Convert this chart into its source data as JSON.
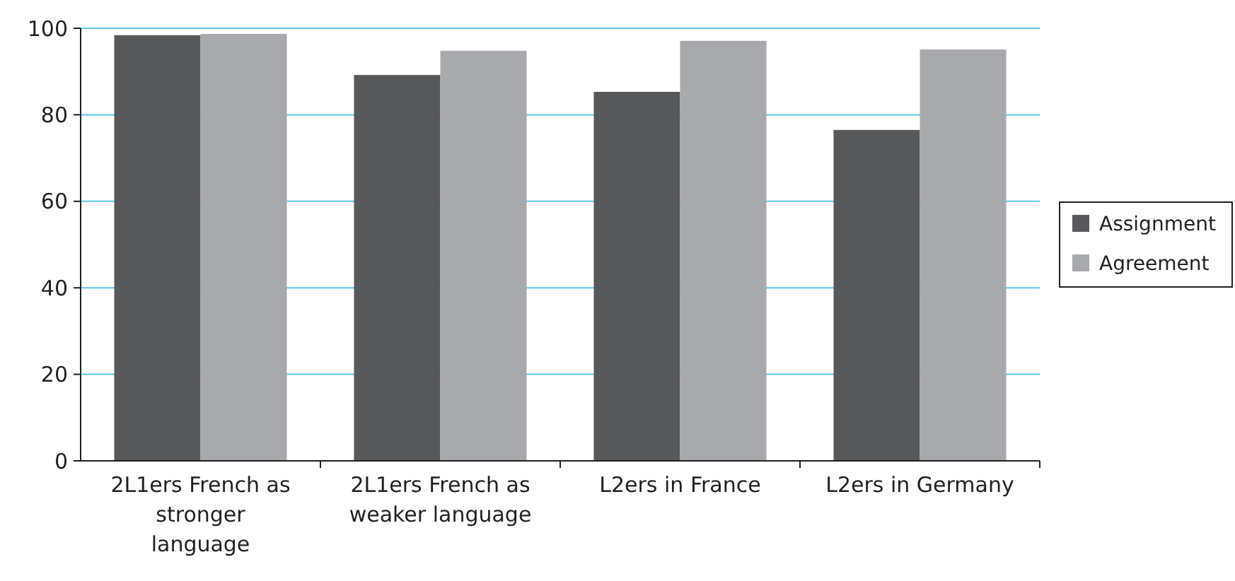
{
  "chart_data": {
    "type": "bar",
    "categories": [
      "2L1ers French as stronger language",
      "2L1ers French as weaker language",
      "L2ers in France",
      "L2ers in Germany"
    ],
    "series": [
      {
        "name": "Assignment",
        "color": "#58595b",
        "values": [
          98.4,
          89.2,
          85.3,
          76.5
        ]
      },
      {
        "name": "Agreement",
        "color": "#a7a9ac",
        "values": [
          98.7,
          94.8,
          97.1,
          95.1
        ]
      }
    ],
    "ylim": [
      0,
      100
    ],
    "yticks": [
      0,
      20,
      40,
      60,
      80,
      100
    ],
    "grid": "y",
    "legend": "right"
  }
}
